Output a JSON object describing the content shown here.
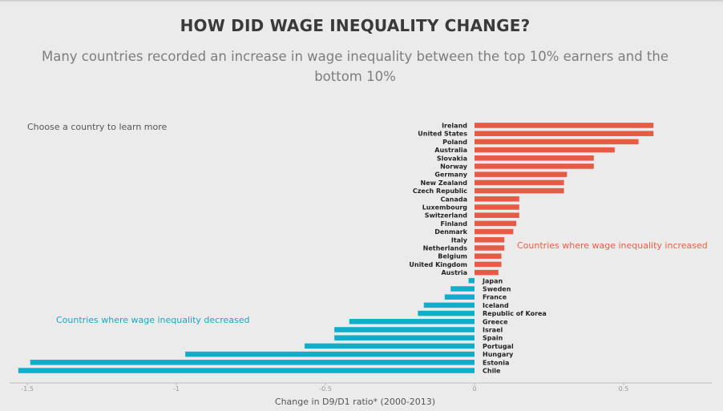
{
  "hint": "Choose a country to learn more",
  "chart_data": {
    "type": "bar",
    "orientation": "horizontal",
    "title": "HOW DID WAGE INEQUALITY CHANGE?",
    "subtitle": "Many countries recorded an increase in wage inequality between the top 10% earners and the bottom 10%",
    "xlabel": "Change in D9/D1 ratio* (2000-2013)",
    "xlim": [
      -1.53,
      0.8
    ],
    "xticks": [
      {
        "value": -1.5,
        "label": "-1.5"
      },
      {
        "value": -1,
        "label": "-1"
      },
      {
        "value": -0.5,
        "label": "-0.5"
      },
      {
        "value": 0,
        "label": "0"
      },
      {
        "value": 0.5,
        "label": "0.5"
      }
    ],
    "annotations": {
      "increased": "Countries where wage inequality increased",
      "decreased": "Countries where wage inequality decreased"
    },
    "colors": {
      "increase": "#e55b45",
      "decrease": "#10aecb"
    },
    "categories": [
      "Ireland",
      "United States",
      "Poland",
      "Australia",
      "Slovakia",
      "Norway",
      "Germany",
      "New Zealand",
      "Czech Republic",
      "Canada",
      "Luxembourg",
      "Switzerland",
      "Finland",
      "Denmark",
      "Italy",
      "Netherlands",
      "Belgium",
      "United Kingdom",
      "Austria",
      "Japan",
      "Sweden",
      "France",
      "Iceland",
      "Republic of Korea",
      "Greece",
      "Israel",
      "Spain",
      "Portugal",
      "Hungary",
      "Estonia",
      "Chile"
    ],
    "values": [
      0.6,
      0.6,
      0.55,
      0.47,
      0.4,
      0.4,
      0.31,
      0.3,
      0.3,
      0.15,
      0.15,
      0.15,
      0.14,
      0.13,
      0.1,
      0.1,
      0.09,
      0.09,
      0.08,
      -0.02,
      -0.08,
      -0.1,
      -0.17,
      -0.19,
      -0.42,
      -0.47,
      -0.47,
      -0.57,
      -0.97,
      -1.49,
      -1.53
    ]
  }
}
